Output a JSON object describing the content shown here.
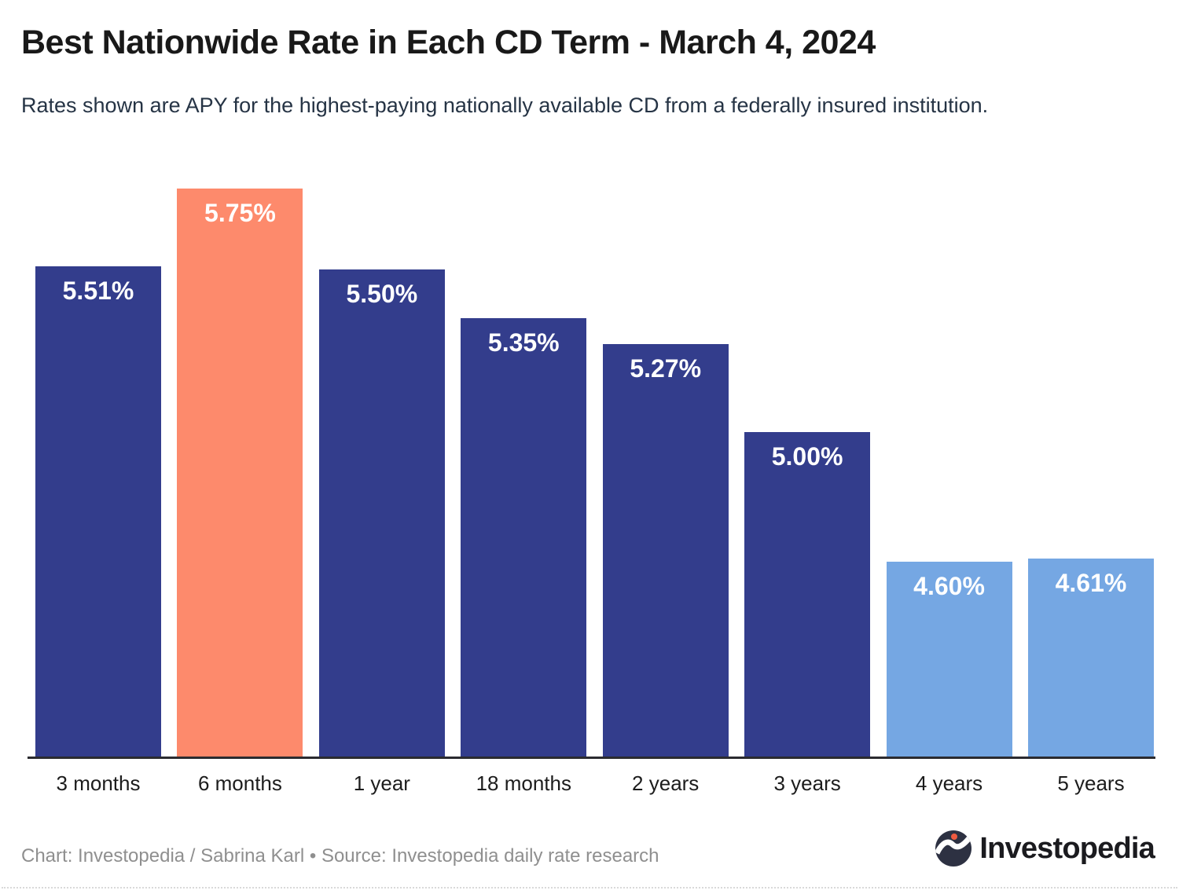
{
  "header": {
    "title": "Best Nationwide Rate in Each CD Term - March 4, 2024",
    "subtitle": "Rates shown are APY for the highest-paying nationally available CD from a federally insured institution."
  },
  "chart_data": {
    "type": "bar",
    "title": "Best Nationwide Rate in Each CD Term - March 4, 2024",
    "subtitle": "Rates shown are APY for the highest-paying nationally available CD from a federally insured institution.",
    "categories": [
      "3 months",
      "6 months",
      "1 year",
      "18 months",
      "2 years",
      "3 years",
      "4 years",
      "5 years"
    ],
    "values": [
      5.51,
      5.75,
      5.5,
      5.35,
      5.27,
      5.0,
      4.6,
      4.61
    ],
    "value_labels": [
      "5.51%",
      "5.75%",
      "5.50%",
      "5.35%",
      "5.27%",
      "5.00%",
      "4.60%",
      "4.61%"
    ],
    "ylim": [
      4.0,
      5.75
    ],
    "xlabel": "",
    "ylabel": "",
    "grid": false,
    "legend": false,
    "highlight_index": 1,
    "bar_color_keys": [
      "navy",
      "coral",
      "navy",
      "navy",
      "navy",
      "navy",
      "lightblue",
      "lightblue"
    ],
    "colors": {
      "navy": "#333d8c",
      "coral": "#fd8a6c",
      "lightblue": "#75a7e3",
      "axis": "#2b2b30",
      "value_label": "#ffffff",
      "logo_circle": "#2d3142",
      "logo_dot": "#ef5b41"
    }
  },
  "footer": {
    "credit": "Chart: Investopedia / Sabrina Karl • Source: Investopedia daily rate research",
    "brand_name": "Investopedia"
  }
}
